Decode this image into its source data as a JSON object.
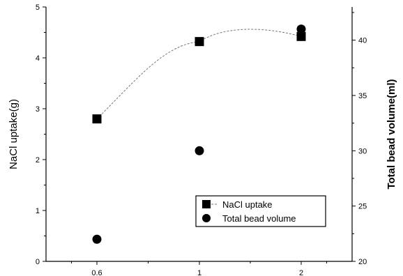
{
  "chart_data": {
    "type": "scatter",
    "categories": [
      "0.6",
      "1",
      "2"
    ],
    "x_tick_labels": [
      "0.6",
      "1",
      "2"
    ],
    "ylabel_left": "NaCl uptake(g)",
    "ylabel_right": "Total bead volume(ml)",
    "y_left_lim": [
      0,
      5
    ],
    "y_left_ticks": [
      0,
      1,
      2,
      3,
      4,
      5
    ],
    "y_right_lim": [
      20,
      43
    ],
    "y_right_ticks": [
      20,
      25,
      30,
      35,
      40
    ],
    "grid": false,
    "legend_placement": "bottom-right",
    "series": [
      {
        "name": "NaCl uptake",
        "axis": "left",
        "marker": "square",
        "line": "dashed-smooth",
        "values": [
          2.8,
          4.32,
          4.42
        ]
      },
      {
        "name": "Total bead volume",
        "axis": "right",
        "marker": "circle",
        "line": "none",
        "values": [
          22.0,
          30.0,
          41.0
        ]
      }
    ],
    "colors": {
      "ink": "#000000",
      "curve": "#777777"
    }
  }
}
